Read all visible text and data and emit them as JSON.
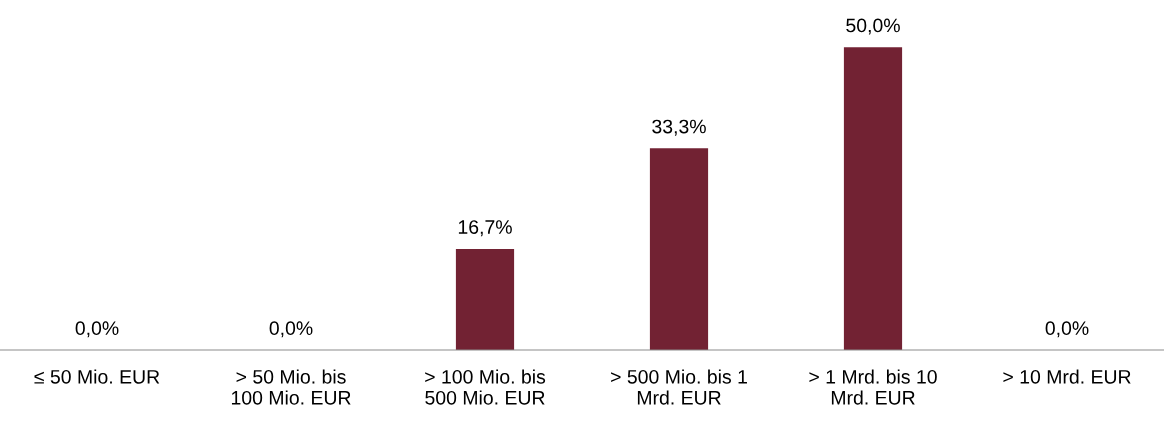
{
  "chart_data": {
    "type": "bar",
    "categories": [
      "≤ 50 Mio. EUR",
      "> 50 Mio. bis\n100 Mio. EUR",
      "> 100 Mio. bis\n500 Mio. EUR",
      "> 500 Mio. bis 1\nMrd. EUR",
      "> 1 Mrd. bis 10\nMrd. EUR",
      "> 10 Mrd. EUR"
    ],
    "values": [
      0.0,
      0.0,
      16.7,
      33.3,
      50.0,
      0.0
    ],
    "value_labels": [
      "0,0%",
      "0,0%",
      "16,7%",
      "33,3%",
      "50,0%",
      "0,0%"
    ],
    "color": "#722233",
    "tick_labels": "x",
    "grid": false,
    "legend": false
  }
}
